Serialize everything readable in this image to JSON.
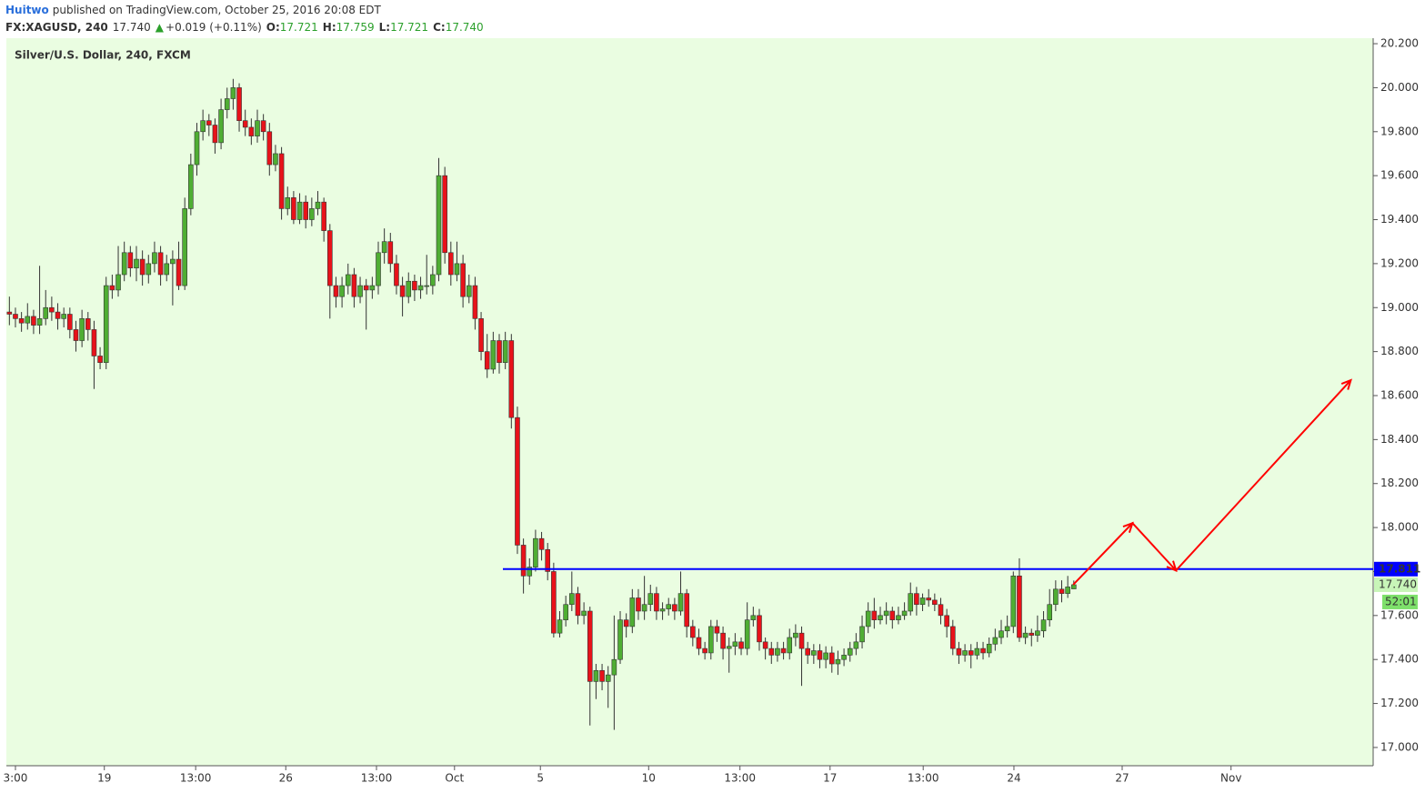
{
  "header": {
    "author": "Huitwo",
    "published": "published on TradingView.com, October 25, 2016 20:08 EDT",
    "symbol": "FX:XAGUSD, 240",
    "price": "17.740",
    "arrow": "▲",
    "change": "+0.019 (+0.11%)",
    "ohlc": [
      {
        "label": "O:",
        "value": "17.721"
      },
      {
        "label": "H:",
        "value": "17.759"
      },
      {
        "label": "L:",
        "value": "17.721"
      },
      {
        "label": "C:",
        "value": "17.740"
      }
    ]
  },
  "chart_data": {
    "type": "candlestick",
    "title": "Silver/U.S. Dollar, 240, FXCM",
    "up_color": "#4fae33",
    "down_color": "#e8121a",
    "xlim": [
      -0.5,
      225.5
    ],
    "ylim": [
      16.917,
      20.225
    ],
    "xticks": [
      {
        "value": 1.0,
        "label": "3:00"
      },
      {
        "value": 15.7,
        "label": "19"
      },
      {
        "value": 30.8,
        "label": "13:00"
      },
      {
        "value": 45.7,
        "label": "26"
      },
      {
        "value": 60.7,
        "label": "13:00"
      },
      {
        "value": 73.6,
        "label": "Oct"
      },
      {
        "value": 87.8,
        "label": "5"
      },
      {
        "value": 105.7,
        "label": "10"
      },
      {
        "value": 120.8,
        "label": "13:00"
      },
      {
        "value": 135.7,
        "label": "17"
      },
      {
        "value": 151.1,
        "label": "13:00"
      },
      {
        "value": 166.1,
        "label": "24"
      },
      {
        "value": 184,
        "label": "27"
      },
      {
        "value": 202,
        "label": "Nov"
      }
    ],
    "yticks": [
      {
        "value": 17.0,
        "label": "17.000"
      },
      {
        "value": 17.2,
        "label": "17.200"
      },
      {
        "value": 17.4,
        "label": "17.400"
      },
      {
        "value": 17.6,
        "label": "17.600"
      },
      {
        "value": 17.8,
        "label": "17.800"
      },
      {
        "value": 18.0,
        "label": "18.000"
      },
      {
        "value": 18.2,
        "label": "18.200"
      },
      {
        "value": 18.4,
        "label": "18.400"
      },
      {
        "value": 18.6,
        "label": "18.600"
      },
      {
        "value": 18.8,
        "label": "18.800"
      },
      {
        "value": 19.0,
        "label": "19.000"
      },
      {
        "value": 19.2,
        "label": "19.200"
      },
      {
        "value": 19.4,
        "label": "19.400"
      },
      {
        "value": 19.6,
        "label": "19.600"
      },
      {
        "value": 19.8,
        "label": "19.800"
      },
      {
        "value": 20.0,
        "label": "20.000"
      },
      {
        "value": 20.2,
        "label": "20.200"
      }
    ],
    "x": [
      0,
      1,
      2,
      3,
      4,
      5,
      6,
      7,
      8,
      9,
      10,
      11,
      12,
      13,
      14,
      15,
      16,
      17,
      18,
      19,
      20,
      21,
      22,
      23,
      24,
      25,
      26,
      27,
      28,
      29,
      30,
      31,
      32,
      33,
      34,
      35,
      36,
      37,
      38,
      39,
      40,
      41,
      42,
      43,
      44,
      45,
      46,
      47,
      48,
      49,
      50,
      51,
      52,
      53,
      54,
      55,
      56,
      57,
      58,
      59,
      60,
      61,
      62,
      63,
      64,
      65,
      66,
      67,
      68,
      69,
      70,
      71,
      72,
      73,
      74,
      75,
      76,
      77,
      78,
      79,
      80,
      81,
      82,
      83,
      84,
      85,
      86,
      87,
      88,
      89,
      90,
      91,
      92,
      93,
      94,
      95,
      96,
      97,
      98,
      99,
      100,
      101,
      102,
      103,
      104,
      105,
      106,
      107,
      108,
      109,
      110,
      111,
      112,
      113,
      114,
      115,
      116,
      117,
      118,
      119,
      120,
      121,
      122,
      123,
      124,
      125,
      126,
      127,
      128,
      129,
      130,
      131,
      132,
      133,
      134,
      135,
      136,
      137,
      138,
      139,
      140,
      141,
      142,
      143,
      144,
      145,
      146,
      147,
      148,
      149,
      150,
      151,
      152,
      153,
      154,
      155,
      156,
      157,
      158,
      159,
      160,
      161,
      162,
      163,
      164,
      165,
      166,
      167,
      168,
      169,
      170,
      171,
      172,
      173,
      174,
      175,
      176
    ],
    "candles": [
      [
        18.98,
        19.05,
        18.92,
        18.97
      ],
      [
        18.97,
        19.0,
        18.91,
        18.95
      ],
      [
        18.95,
        18.98,
        18.89,
        18.93
      ],
      [
        18.93,
        19.02,
        18.9,
        18.96
      ],
      [
        18.96,
        18.99,
        18.88,
        18.92
      ],
      [
        18.92,
        19.19,
        18.88,
        18.95
      ],
      [
        18.95,
        19.08,
        18.92,
        19.0
      ],
      [
        19.0,
        19.05,
        18.94,
        18.98
      ],
      [
        18.98,
        19.02,
        18.9,
        18.95
      ],
      [
        18.95,
        19.0,
        18.91,
        18.97
      ],
      [
        18.97,
        19.0,
        18.86,
        18.9
      ],
      [
        18.9,
        18.94,
        18.8,
        18.85
      ],
      [
        18.85,
        18.99,
        18.82,
        18.95
      ],
      [
        18.95,
        18.98,
        18.85,
        18.9
      ],
      [
        18.9,
        18.94,
        18.63,
        18.78
      ],
      [
        18.78,
        18.82,
        18.72,
        18.75
      ],
      [
        18.75,
        19.14,
        18.72,
        19.1
      ],
      [
        19.1,
        19.15,
        19.04,
        19.08
      ],
      [
        19.08,
        19.28,
        19.05,
        19.15
      ],
      [
        19.15,
        19.3,
        19.12,
        19.25
      ],
      [
        19.25,
        19.28,
        19.14,
        19.18
      ],
      [
        19.18,
        19.28,
        19.12,
        19.22
      ],
      [
        19.22,
        19.26,
        19.1,
        19.15
      ],
      [
        19.15,
        19.24,
        19.11,
        19.2
      ],
      [
        19.2,
        19.3,
        19.16,
        19.25
      ],
      [
        19.25,
        19.28,
        19.1,
        19.15
      ],
      [
        19.15,
        19.24,
        19.12,
        19.2
      ],
      [
        19.2,
        19.26,
        19.01,
        19.22
      ],
      [
        19.22,
        19.3,
        19.08,
        19.1
      ],
      [
        19.1,
        19.5,
        19.08,
        19.45
      ],
      [
        19.45,
        19.7,
        19.42,
        19.65
      ],
      [
        19.65,
        19.84,
        19.6,
        19.8
      ],
      [
        19.8,
        19.9,
        19.76,
        19.85
      ],
      [
        19.85,
        19.88,
        19.78,
        19.83
      ],
      [
        19.83,
        19.86,
        19.7,
        19.75
      ],
      [
        19.75,
        19.95,
        19.72,
        19.9
      ],
      [
        19.9,
        20.0,
        19.86,
        19.95
      ],
      [
        19.95,
        20.04,
        19.9,
        20.0
      ],
      [
        20.0,
        20.02,
        19.8,
        19.85
      ],
      [
        19.85,
        19.9,
        19.78,
        19.82
      ],
      [
        19.82,
        19.86,
        19.74,
        19.78
      ],
      [
        19.78,
        19.9,
        19.75,
        19.85
      ],
      [
        19.85,
        19.88,
        19.76,
        19.8
      ],
      [
        19.8,
        19.84,
        19.6,
        19.65
      ],
      [
        19.65,
        19.74,
        19.62,
        19.7
      ],
      [
        19.7,
        19.73,
        19.4,
        19.45
      ],
      [
        19.45,
        19.55,
        19.42,
        19.5
      ],
      [
        19.5,
        19.53,
        19.38,
        19.4
      ],
      [
        19.4,
        19.52,
        19.38,
        19.48
      ],
      [
        19.48,
        19.51,
        19.36,
        19.4
      ],
      [
        19.4,
        19.5,
        19.37,
        19.45
      ],
      [
        19.45,
        19.53,
        19.42,
        19.48
      ],
      [
        19.48,
        19.5,
        19.3,
        19.35
      ],
      [
        19.35,
        19.38,
        18.95,
        19.1
      ],
      [
        19.1,
        19.14,
        19.0,
        19.05
      ],
      [
        19.05,
        19.14,
        19.0,
        19.1
      ],
      [
        19.1,
        19.2,
        19.06,
        19.15
      ],
      [
        19.15,
        19.18,
        19.0,
        19.05
      ],
      [
        19.05,
        19.14,
        19.02,
        19.1
      ],
      [
        19.1,
        19.13,
        18.9,
        19.08
      ],
      [
        19.08,
        19.14,
        19.04,
        19.1
      ],
      [
        19.1,
        19.3,
        19.06,
        19.25
      ],
      [
        19.25,
        19.36,
        19.2,
        19.3
      ],
      [
        19.3,
        19.34,
        19.16,
        19.2
      ],
      [
        19.2,
        19.24,
        19.06,
        19.1
      ],
      [
        19.1,
        19.14,
        18.96,
        19.05
      ],
      [
        19.05,
        19.16,
        19.02,
        19.12
      ],
      [
        19.12,
        19.15,
        19.03,
        19.08
      ],
      [
        19.08,
        19.14,
        19.04,
        19.1
      ],
      [
        19.1,
        19.24,
        19.06,
        19.1
      ],
      [
        19.1,
        19.19,
        19.06,
        19.15
      ],
      [
        19.15,
        19.68,
        19.12,
        19.6
      ],
      [
        19.6,
        19.64,
        19.2,
        19.25
      ],
      [
        19.25,
        19.3,
        19.1,
        19.15
      ],
      [
        19.15,
        19.3,
        19.12,
        19.2
      ],
      [
        19.2,
        19.24,
        19.0,
        19.05
      ],
      [
        19.05,
        19.15,
        19.02,
        19.1
      ],
      [
        19.1,
        19.14,
        18.9,
        18.95
      ],
      [
        18.95,
        18.98,
        18.76,
        18.8
      ],
      [
        18.8,
        18.88,
        18.68,
        18.72
      ],
      [
        18.72,
        18.89,
        18.7,
        18.85
      ],
      [
        18.85,
        18.88,
        18.7,
        18.75
      ],
      [
        18.75,
        18.89,
        18.72,
        18.85
      ],
      [
        18.85,
        18.88,
        18.45,
        18.5
      ],
      [
        18.5,
        18.55,
        17.88,
        17.92
      ],
      [
        17.92,
        17.95,
        17.7,
        17.78
      ],
      [
        17.78,
        17.86,
        17.74,
        17.82
      ],
      [
        17.82,
        17.99,
        17.8,
        17.95
      ],
      [
        17.95,
        17.98,
        17.85,
        17.9
      ],
      [
        17.9,
        17.93,
        17.76,
        17.8
      ],
      [
        17.8,
        17.84,
        17.5,
        17.52
      ],
      [
        17.52,
        17.62,
        17.5,
        17.58
      ],
      [
        17.58,
        17.69,
        17.55,
        17.65
      ],
      [
        17.65,
        17.8,
        17.62,
        17.7
      ],
      [
        17.7,
        17.73,
        17.56,
        17.6
      ],
      [
        17.6,
        17.66,
        17.56,
        17.62
      ],
      [
        17.62,
        17.64,
        17.1,
        17.3
      ],
      [
        17.3,
        17.38,
        17.22,
        17.35
      ],
      [
        17.35,
        17.38,
        17.26,
        17.3
      ],
      [
        17.3,
        17.37,
        17.18,
        17.33
      ],
      [
        17.33,
        17.6,
        17.08,
        17.4
      ],
      [
        17.4,
        17.62,
        17.38,
        17.58
      ],
      [
        17.58,
        17.61,
        17.5,
        17.55
      ],
      [
        17.55,
        17.72,
        17.52,
        17.68
      ],
      [
        17.68,
        17.72,
        17.58,
        17.62
      ],
      [
        17.62,
        17.78,
        17.58,
        17.65
      ],
      [
        17.65,
        17.74,
        17.62,
        17.7
      ],
      [
        17.7,
        17.73,
        17.58,
        17.62
      ],
      [
        17.62,
        17.66,
        17.58,
        17.63
      ],
      [
        17.63,
        17.68,
        17.6,
        17.65
      ],
      [
        17.65,
        17.68,
        17.58,
        17.62
      ],
      [
        17.62,
        17.8,
        17.6,
        17.7
      ],
      [
        17.7,
        17.72,
        17.5,
        17.55
      ],
      [
        17.55,
        17.58,
        17.46,
        17.5
      ],
      [
        17.5,
        17.54,
        17.42,
        17.45
      ],
      [
        17.45,
        17.48,
        17.4,
        17.43
      ],
      [
        17.43,
        17.58,
        17.4,
        17.55
      ],
      [
        17.55,
        17.58,
        17.48,
        17.52
      ],
      [
        17.52,
        17.55,
        17.4,
        17.45
      ],
      [
        17.45,
        17.5,
        17.34,
        17.46
      ],
      [
        17.46,
        17.52,
        17.42,
        17.48
      ],
      [
        17.48,
        17.5,
        17.42,
        17.45
      ],
      [
        17.45,
        17.66,
        17.42,
        17.58
      ],
      [
        17.58,
        17.64,
        17.55,
        17.6
      ],
      [
        17.6,
        17.63,
        17.44,
        17.48
      ],
      [
        17.48,
        17.5,
        17.4,
        17.45
      ],
      [
        17.45,
        17.48,
        17.38,
        17.42
      ],
      [
        17.42,
        17.48,
        17.39,
        17.45
      ],
      [
        17.45,
        17.48,
        17.4,
        17.43
      ],
      [
        17.43,
        17.54,
        17.4,
        17.5
      ],
      [
        17.5,
        17.56,
        17.46,
        17.52
      ],
      [
        17.52,
        17.55,
        17.28,
        17.45
      ],
      [
        17.45,
        17.48,
        17.38,
        17.42
      ],
      [
        17.42,
        17.47,
        17.38,
        17.44
      ],
      [
        17.44,
        17.47,
        17.36,
        17.4
      ],
      [
        17.4,
        17.46,
        17.36,
        17.43
      ],
      [
        17.43,
        17.46,
        17.34,
        17.38
      ],
      [
        17.38,
        17.44,
        17.33,
        17.4
      ],
      [
        17.4,
        17.45,
        17.37,
        17.42
      ],
      [
        17.42,
        17.48,
        17.39,
        17.45
      ],
      [
        17.45,
        17.52,
        17.42,
        17.48
      ],
      [
        17.48,
        17.6,
        17.45,
        17.55
      ],
      [
        17.55,
        17.66,
        17.52,
        17.62
      ],
      [
        17.62,
        17.68,
        17.54,
        17.58
      ],
      [
        17.58,
        17.64,
        17.56,
        17.6
      ],
      [
        17.6,
        17.66,
        17.56,
        17.62
      ],
      [
        17.62,
        17.64,
        17.54,
        17.58
      ],
      [
        17.58,
        17.64,
        17.56,
        17.6
      ],
      [
        17.6,
        17.66,
        17.58,
        17.62
      ],
      [
        17.62,
        17.75,
        17.6,
        17.7
      ],
      [
        17.7,
        17.73,
        17.6,
        17.65
      ],
      [
        17.65,
        17.7,
        17.62,
        17.68
      ],
      [
        17.68,
        17.72,
        17.64,
        17.67
      ],
      [
        17.67,
        17.7,
        17.62,
        17.65
      ],
      [
        17.65,
        17.68,
        17.56,
        17.6
      ],
      [
        17.6,
        17.63,
        17.5,
        17.55
      ],
      [
        17.55,
        17.58,
        17.42,
        17.45
      ],
      [
        17.45,
        17.48,
        17.38,
        17.42
      ],
      [
        17.42,
        17.47,
        17.39,
        17.44
      ],
      [
        17.44,
        17.47,
        17.36,
        17.42
      ],
      [
        17.42,
        17.48,
        17.4,
        17.45
      ],
      [
        17.45,
        17.48,
        17.4,
        17.43
      ],
      [
        17.43,
        17.5,
        17.41,
        17.47
      ],
      [
        17.47,
        17.54,
        17.44,
        17.5
      ],
      [
        17.5,
        17.58,
        17.47,
        17.53
      ],
      [
        17.53,
        17.6,
        17.5,
        17.55
      ],
      [
        17.55,
        17.8,
        17.52,
        17.78
      ],
      [
        17.78,
        17.86,
        17.48,
        17.5
      ],
      [
        17.5,
        17.55,
        17.47,
        17.52
      ],
      [
        17.52,
        17.54,
        17.46,
        17.51
      ],
      [
        17.51,
        17.6,
        17.48,
        17.53
      ],
      [
        17.53,
        17.62,
        17.5,
        17.58
      ],
      [
        17.58,
        17.72,
        17.55,
        17.65
      ],
      [
        17.65,
        17.76,
        17.62,
        17.72
      ],
      [
        17.72,
        17.76,
        17.66,
        17.7
      ],
      [
        17.7,
        17.78,
        17.68,
        17.73
      ],
      [
        17.721,
        17.759,
        17.721,
        17.74
      ]
    ],
    "hline": {
      "value": 17.811,
      "label": "17.811",
      "x_start": 81.6,
      "color": "#0000ff"
    },
    "last_price": {
      "value": 17.74,
      "label": "17.740",
      "countdown": "52:01"
    },
    "projection": {
      "color": "#ff0000",
      "x": [
        175.9,
        185.7,
        192.9,
        221.8
      ],
      "y": [
        17.74,
        18.02,
        17.805,
        18.67
      ]
    }
  }
}
